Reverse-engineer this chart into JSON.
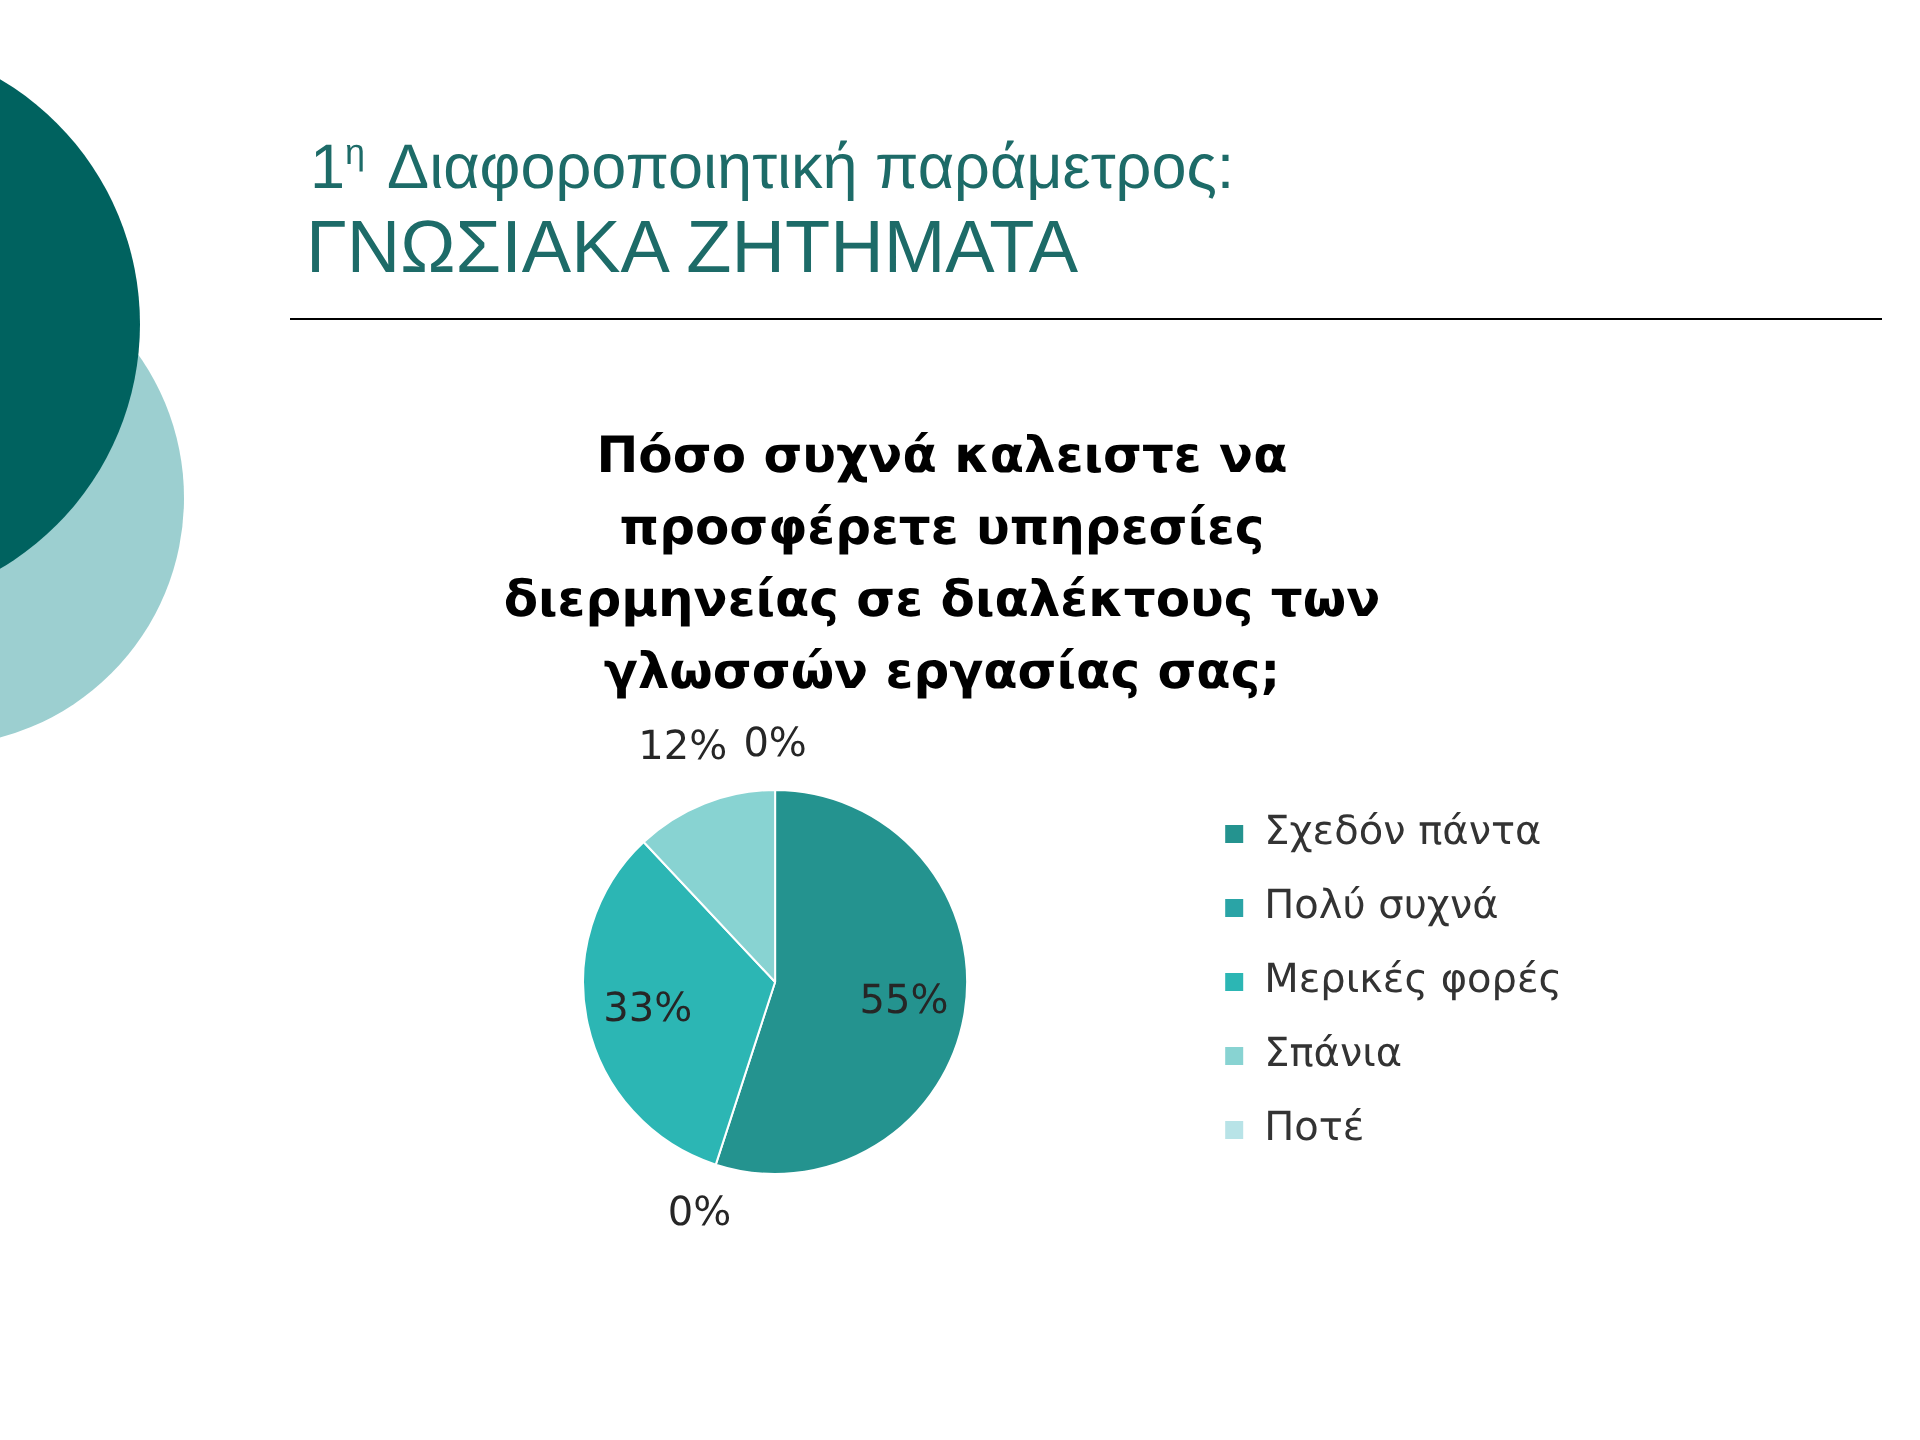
{
  "chart_data": {
    "type": "pie",
    "title": "Πόσο συχνά καλειστε να προσφέρετε υπηρεσίες διερμηνείας σε διαλέκτους των γλωσσών εργασίας σας;",
    "annotations": [
      "1$^{η}$ Διαφοροποιητική παράμετρος:",
      "ΓΝΩΣΙΑΚΑ ΖΗΤΗΜΑΤΑ"
    ],
    "categories": [
      "Σχεδόν πάντα",
      "Πολύ συχνά",
      "Μερικές φορές",
      "Σπάνια",
      "Ποτέ"
    ],
    "values": [
      55,
      0,
      33,
      12,
      0
    ],
    "colors": [
      "#24938f",
      "#2aa4a6",
      "#2cb6b4",
      "#88d3d2",
      "#b8e3e7"
    ],
    "value_labels": [
      "55%",
      "0%",
      "33%",
      "12%",
      "0%"
    ],
    "legend": "right"
  }
}
